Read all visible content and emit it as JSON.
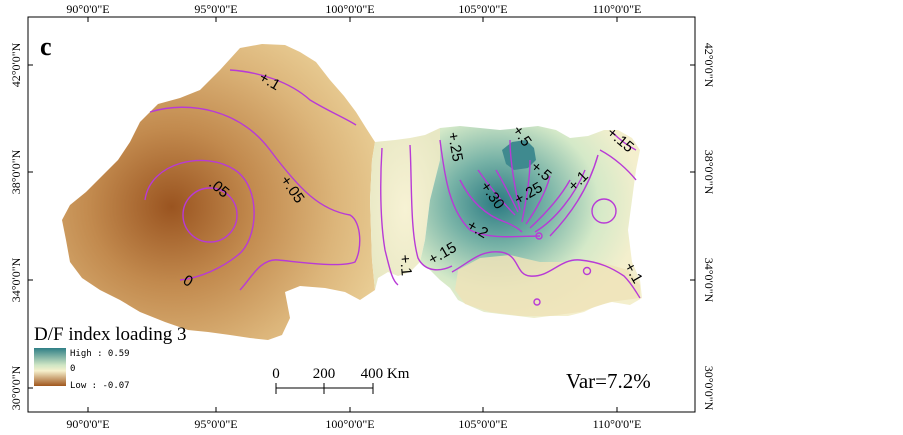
{
  "panel_label": "c",
  "axes": {
    "top": [
      "90°0'0\"E",
      "95°0'0\"E",
      "100°0'0\"E",
      "105°0'0\"E",
      "110°0'0\"E"
    ],
    "bottom": [
      "90°0'0\"E",
      "95°0'0\"E",
      "100°0'0\"E",
      "105°0'0\"E",
      "110°0'0\"E"
    ],
    "left": [
      "42°0'0\"N",
      "38°0'0\"N",
      "34°0'0\"N",
      "30°0'0\"N"
    ],
    "right": [
      "42°0'0\"N",
      "38°0'0\"N",
      "34°0'0\"N",
      "30°0'0\"N"
    ]
  },
  "contour_labels": [
    "+.1",
    ".05",
    "+.05",
    "0",
    "+.25",
    "+.5",
    "+.5",
    "+.15",
    "+.30",
    "+.25",
    "+.2",
    "+.1",
    "+.15",
    "+.1",
    "+.1"
  ],
  "legend": {
    "title": "D/F index loading 3",
    "high": "High : 0.59",
    "mid": "0",
    "low": "Low : -0.07",
    "colors": {
      "high": "#2f7f86",
      "mid": "#f6f0cc",
      "low": "#a0571d"
    }
  },
  "scale_bar": {
    "labels": [
      "0",
      "200",
      "400 Km"
    ]
  },
  "variance": "Var=7.2%"
}
